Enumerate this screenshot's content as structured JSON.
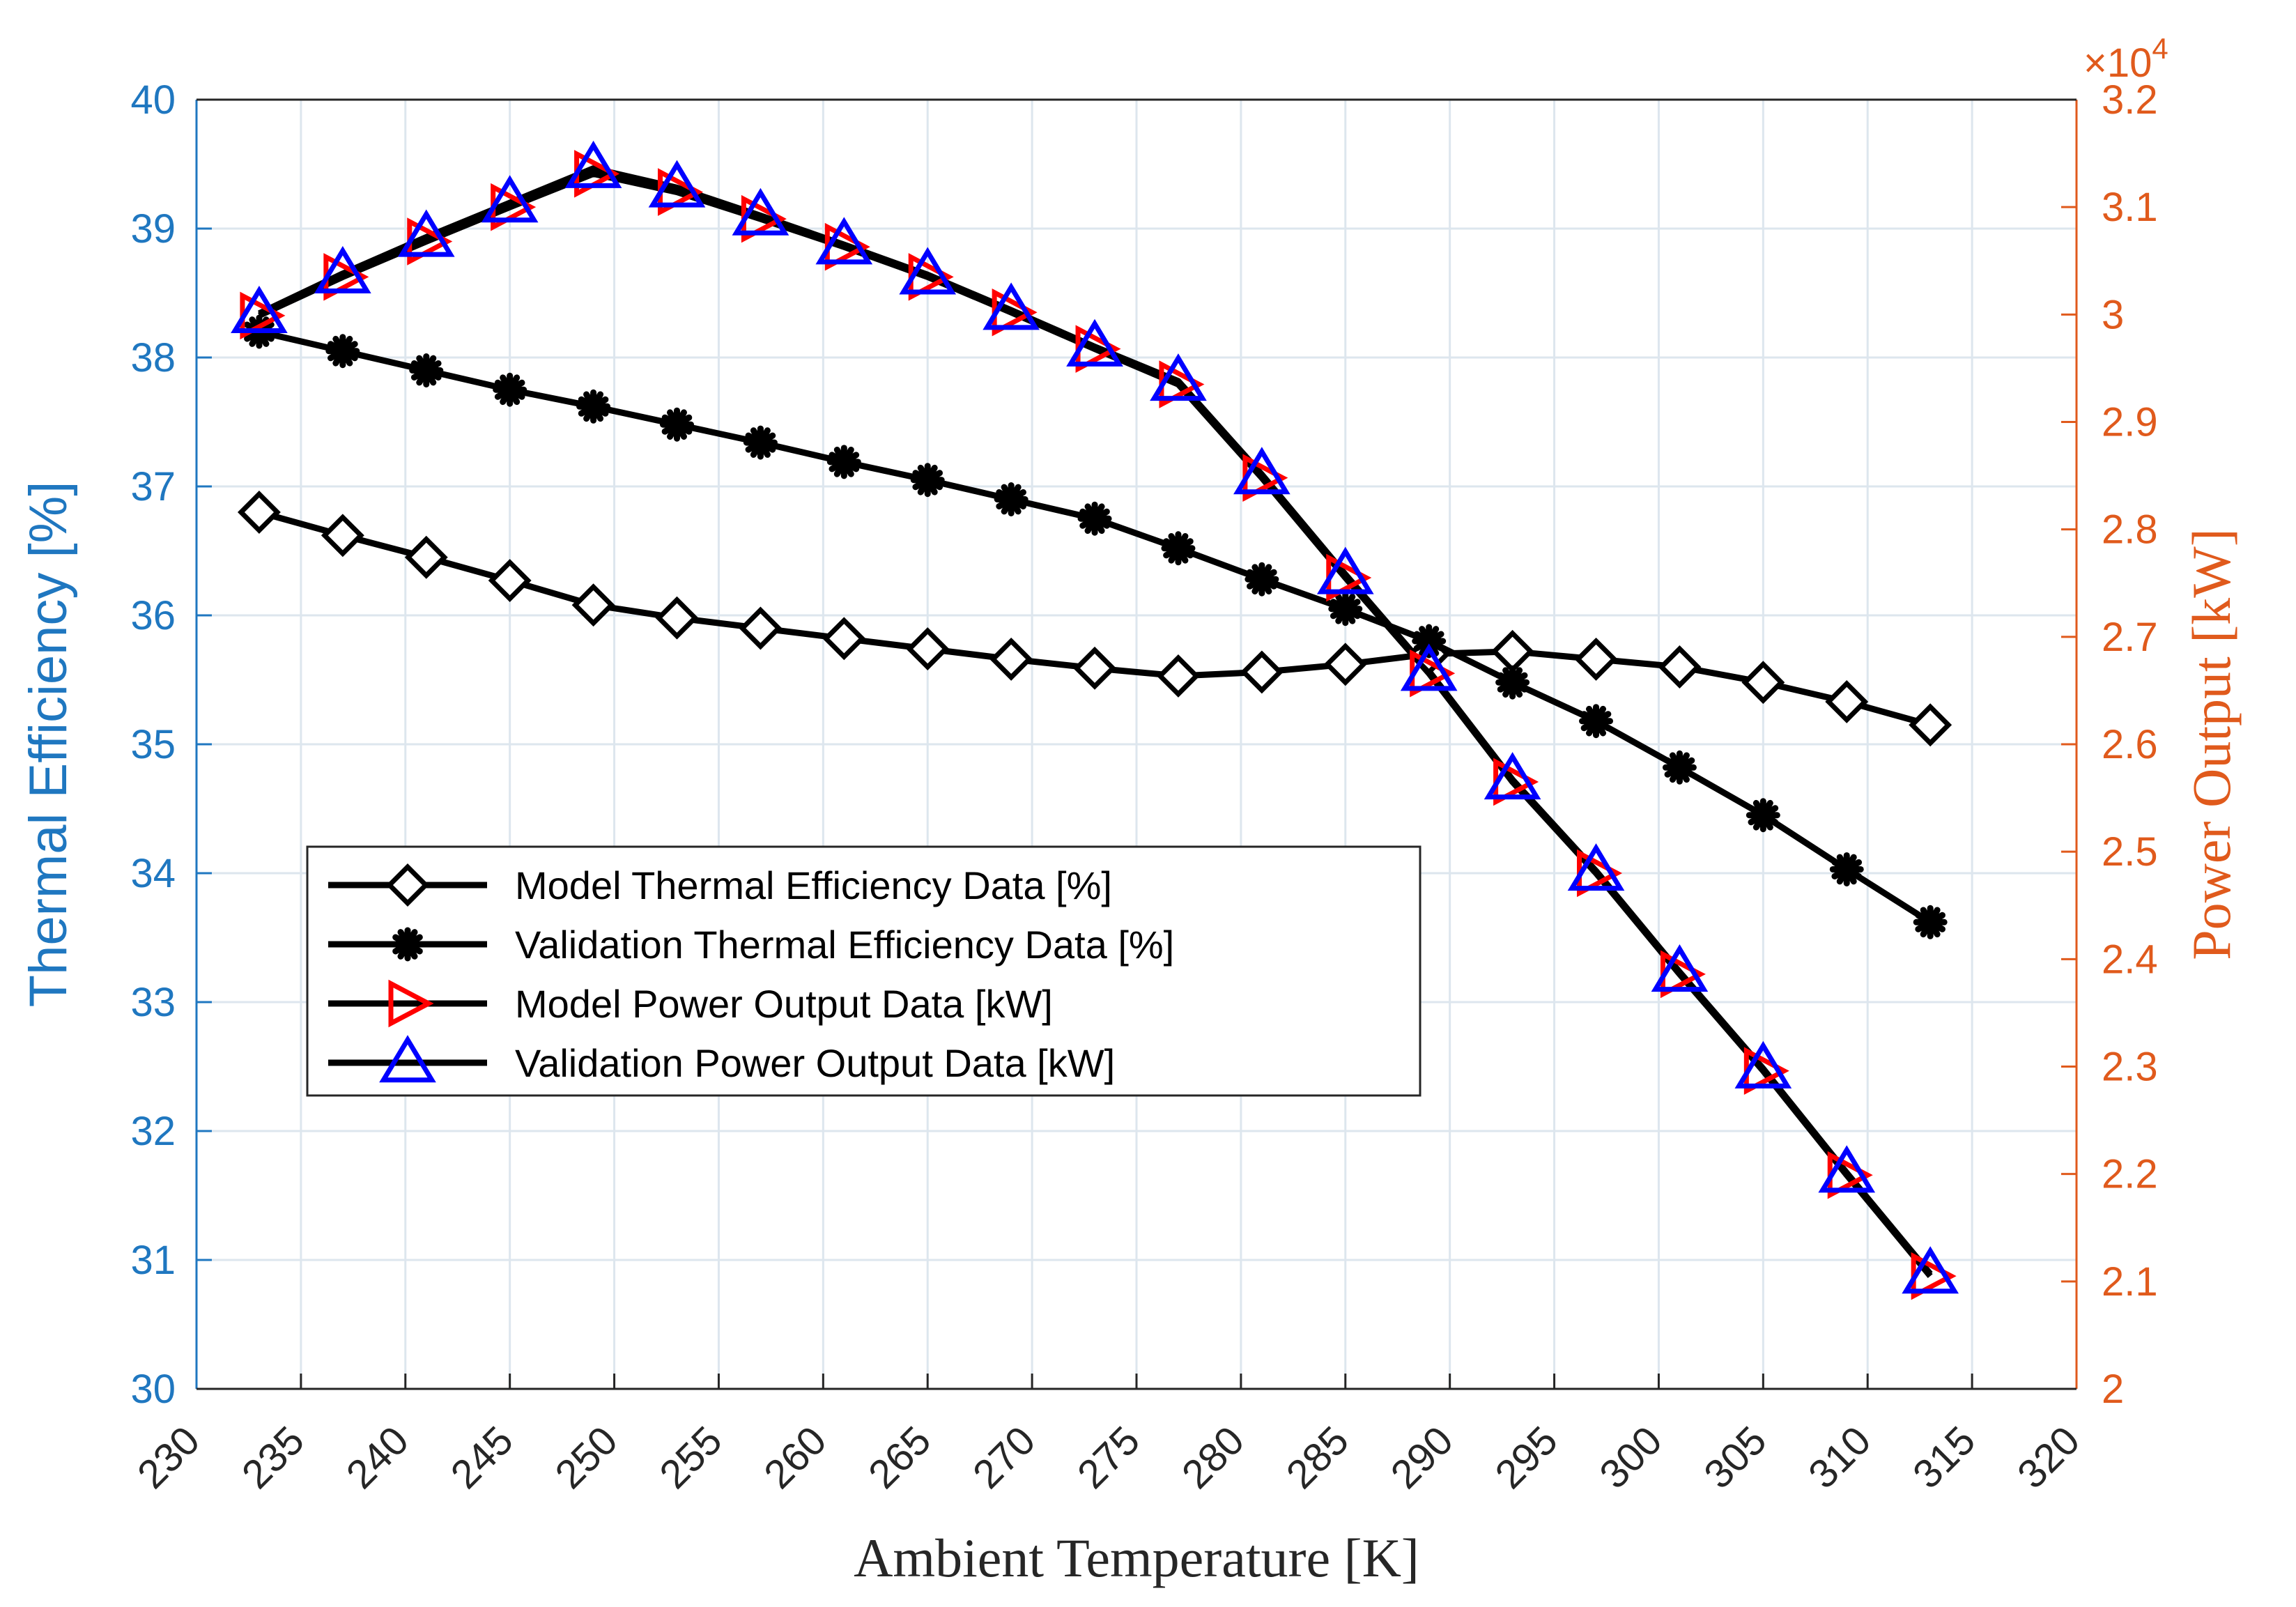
{
  "chart_data": {
    "type": "line",
    "xlabel": "Ambient Temperature [K]",
    "ylabel_left": "Thermal Efficiency [%]",
    "ylabel_right": "Power Output [kW]",
    "right_axis_exponent": "×10",
    "right_axis_exponent_power": "4",
    "xlim": [
      230,
      320
    ],
    "x_ticks": [
      "230",
      "235",
      "240",
      "245",
      "250",
      "255",
      "260",
      "265",
      "270",
      "275",
      "280",
      "285",
      "290",
      "295",
      "300",
      "305",
      "310",
      "315",
      "320"
    ],
    "ylim_left": [
      30,
      40
    ],
    "y_left_ticks": [
      "30",
      "31",
      "32",
      "33",
      "34",
      "35",
      "36",
      "37",
      "38",
      "39",
      "40"
    ],
    "ylim_right": [
      2,
      3.2
    ],
    "y_right_ticks": [
      "2",
      "2.1",
      "2.2",
      "2.3",
      "2.4",
      "2.5",
      "2.6",
      "2.7",
      "2.8",
      "2.9",
      "3",
      "3.1",
      "3.2"
    ],
    "grid": true,
    "legend_position": "center-left",
    "colors": {
      "left_axis": "#1f77c0",
      "right_axis": "#e05a1c",
      "line": "#000000",
      "grid": "#dde6ee",
      "model_power_marker": "#ff0000",
      "validation_power_marker": "#0000ff"
    },
    "x": [
      233,
      237,
      241,
      245,
      249,
      253,
      257,
      261,
      265,
      269,
      273,
      277,
      281,
      285,
      289,
      293,
      297,
      301,
      305,
      309,
      313
    ],
    "series": [
      {
        "name": "Model Thermal Efficiency Data [%]",
        "axis": "left",
        "marker": "diamond",
        "values": [
          36.8,
          36.62,
          36.45,
          36.27,
          36.08,
          35.98,
          35.9,
          35.82,
          35.74,
          35.66,
          35.59,
          35.53,
          35.56,
          35.62,
          35.7,
          35.72,
          35.66,
          35.6,
          35.48,
          35.33,
          35.15
        ]
      },
      {
        "name": "Validation Thermal Efficiency Data [%]",
        "axis": "left",
        "marker": "asterisk",
        "values": [
          38.2,
          38.05,
          37.9,
          37.75,
          37.62,
          37.48,
          37.34,
          37.19,
          37.05,
          36.9,
          36.75,
          36.52,
          36.28,
          36.05,
          35.8,
          35.48,
          35.18,
          34.82,
          34.45,
          34.03,
          33.62
        ]
      },
      {
        "name": "Model Power Output Data [kW]",
        "axis": "right",
        "marker": "triangle-right",
        "values": [
          2.999,
          3.035,
          3.068,
          3.1,
          3.131,
          3.114,
          3.089,
          3.063,
          3.035,
          3.002,
          2.968,
          2.935,
          2.848,
          2.755,
          2.666,
          2.565,
          2.48,
          2.386,
          2.296,
          2.199,
          2.105
        ]
      },
      {
        "name": "Validation Power Output Data [kW]",
        "axis": "right",
        "marker": "triangle-up",
        "values": [
          3.001,
          3.038,
          3.072,
          3.104,
          3.136,
          3.118,
          3.092,
          3.065,
          3.037,
          3.004,
          2.97,
          2.938,
          2.851,
          2.758,
          2.668,
          2.567,
          2.482,
          2.388,
          2.298,
          2.201,
          2.107
        ]
      }
    ]
  }
}
